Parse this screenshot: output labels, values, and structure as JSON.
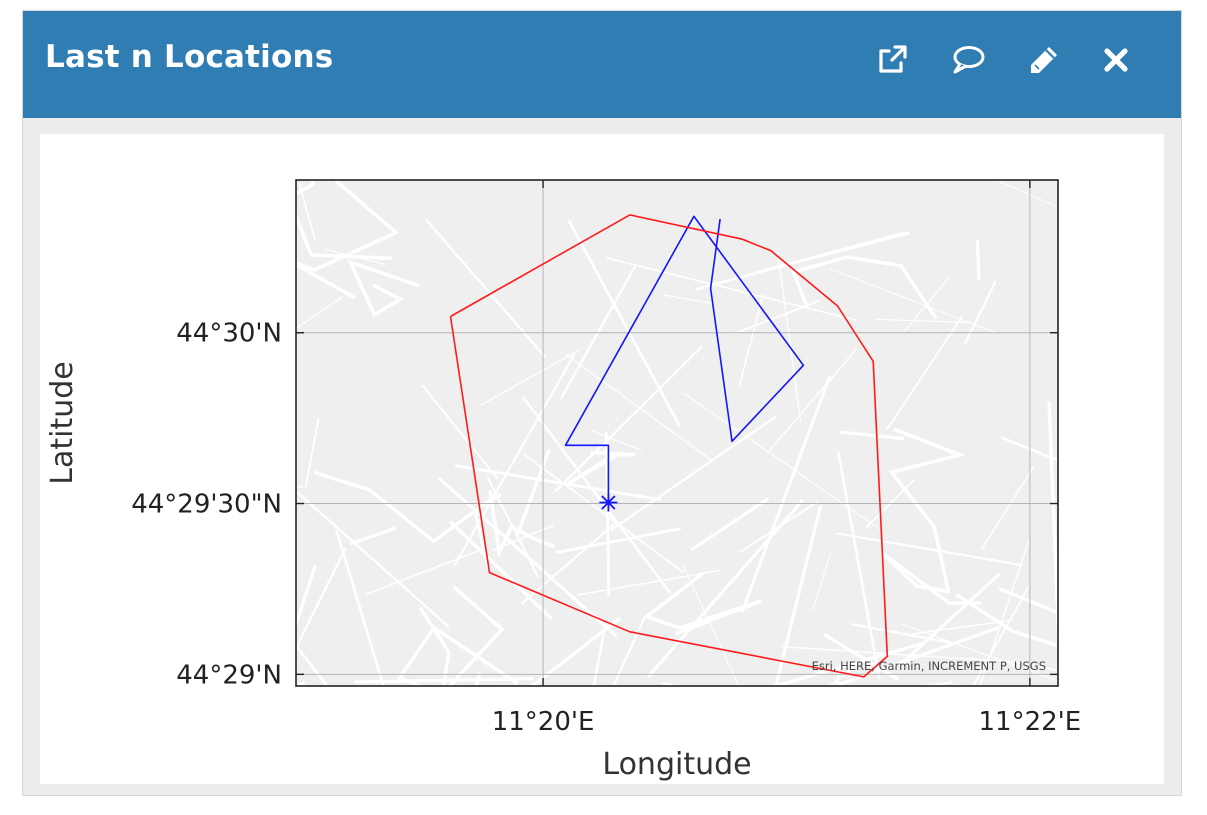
{
  "widget": {
    "title": "Last n Locations",
    "toolbar": [
      {
        "name": "open-external-button",
        "icon": "external-link-icon"
      },
      {
        "name": "comment-button",
        "icon": "speech-bubble-icon"
      },
      {
        "name": "edit-button",
        "icon": "pencil-icon"
      },
      {
        "name": "close-button",
        "icon": "close-icon"
      }
    ]
  },
  "colors": {
    "header": "#2f7db2",
    "track": "#1414ff",
    "hull": "#ff1a1a",
    "map_background": "#efefef",
    "streets": "#ffffff"
  },
  "chart_data": {
    "type": "map",
    "xlabel": "Longitude",
    "ylabel": "Latitude",
    "x_ticks": [
      {
        "value": 11.333333,
        "label": "11°20'E"
      },
      {
        "value": 11.366667,
        "label": "11°22'E"
      }
    ],
    "y_ticks": [
      {
        "value": 44.483333,
        "label": "44°29'N"
      },
      {
        "value": 44.491667,
        "label": "44°29'30\"N"
      },
      {
        "value": 44.5,
        "label": "44°30'N"
      }
    ],
    "xlim": [
      11.316415,
      11.368593
    ],
    "ylim": [
      44.482765,
      44.507451
    ],
    "grid": true,
    "attribution": "Esri, HERE, Garmin, INCREMENT P, USGS",
    "series": [
      {
        "kind": "line",
        "color": "#1414ff",
        "points": [
          [
            11.337805,
            44.491716
          ],
          [
            11.337805,
            44.494506
          ],
          [
            11.334871,
            44.494506
          ],
          [
            11.343662,
            44.505681
          ],
          [
            11.351159,
            44.498412
          ],
          [
            11.346271,
            44.494703
          ],
          [
            11.344804,
            44.502168
          ],
          [
            11.345454,
            44.505548
          ]
        ]
      },
      {
        "kind": "marker",
        "symbol": "asterisk",
        "color": "#1414ff",
        "point": [
          11.337805,
          44.491716
        ]
      },
      {
        "kind": "line",
        "color": "#ff1a1a",
        "points": [
          [
            11.326993,
            44.500794
          ],
          [
            11.339271,
            44.505748
          ],
          [
            11.346984,
            44.504561
          ],
          [
            11.348938,
            44.503998
          ],
          [
            11.353499,
            44.501303
          ],
          [
            11.355937,
            44.498607
          ],
          [
            11.356901,
            44.484211
          ],
          [
            11.355295,
            44.483211
          ],
          [
            11.339271,
            44.485408
          ],
          [
            11.329668,
            44.488296
          ],
          [
            11.326993,
            44.500794
          ]
        ]
      }
    ]
  }
}
